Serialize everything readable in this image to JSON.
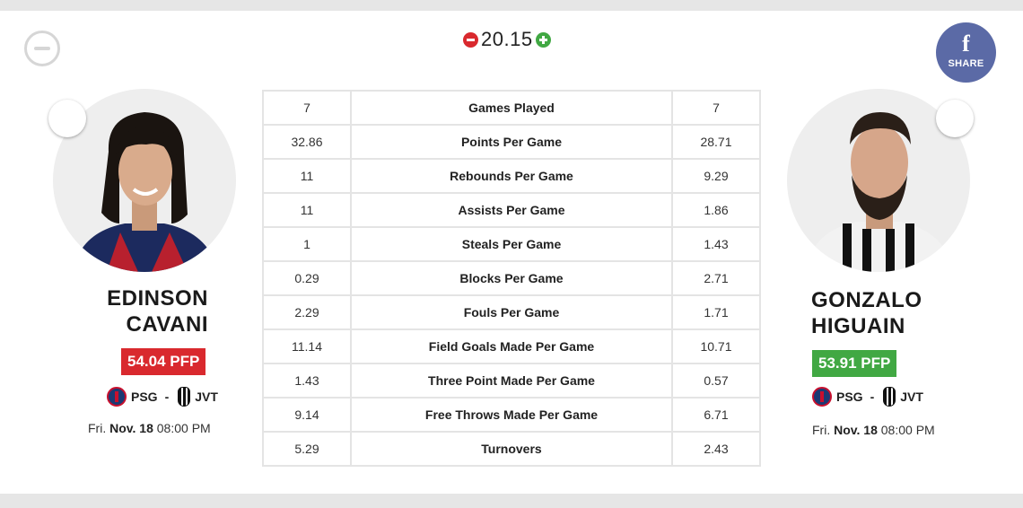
{
  "header": {
    "score_diff": "20.15",
    "share_label": "SHARE",
    "share_icon": "facebook-icon"
  },
  "colors": {
    "negative": "#d9292e",
    "positive": "#41a843",
    "share_bg": "#5b6aa6"
  },
  "left_player": {
    "first_name": "EDINSON",
    "last_name": "CAVANI",
    "pfp": "54.04 PFP",
    "home_team": "PSG",
    "separator": "-",
    "away_team": "JVT",
    "date_day": "Fri.",
    "date_md": "Nov. 18",
    "date_time": "08:00 PM"
  },
  "right_player": {
    "first_name": "GONZALO",
    "last_name": "HIGUAIN",
    "pfp": "53.91 PFP",
    "home_team": "PSG",
    "separator": "-",
    "away_team": "JVT",
    "date_day": "Fri.",
    "date_md": "Nov. 18",
    "date_time": "08:00 PM"
  },
  "stats": [
    {
      "left": "7",
      "label": "Games Played",
      "right": "7"
    },
    {
      "left": "32.86",
      "label": "Points Per Game",
      "right": "28.71"
    },
    {
      "left": "11",
      "label": "Rebounds Per Game",
      "right": "9.29"
    },
    {
      "left": "11",
      "label": "Assists Per Game",
      "right": "1.86"
    },
    {
      "left": "1",
      "label": "Steals Per Game",
      "right": "1.43"
    },
    {
      "left": "0.29",
      "label": "Blocks Per Game",
      "right": "2.71"
    },
    {
      "left": "2.29",
      "label": "Fouls Per Game",
      "right": "1.71"
    },
    {
      "left": "11.14",
      "label": "Field Goals Made Per Game",
      "right": "10.71"
    },
    {
      "left": "1.43",
      "label": "Three Point Made Per Game",
      "right": "0.57"
    },
    {
      "left": "9.14",
      "label": "Free Throws Made Per Game",
      "right": "6.71"
    },
    {
      "left": "5.29",
      "label": "Turnovers",
      "right": "2.43"
    }
  ]
}
